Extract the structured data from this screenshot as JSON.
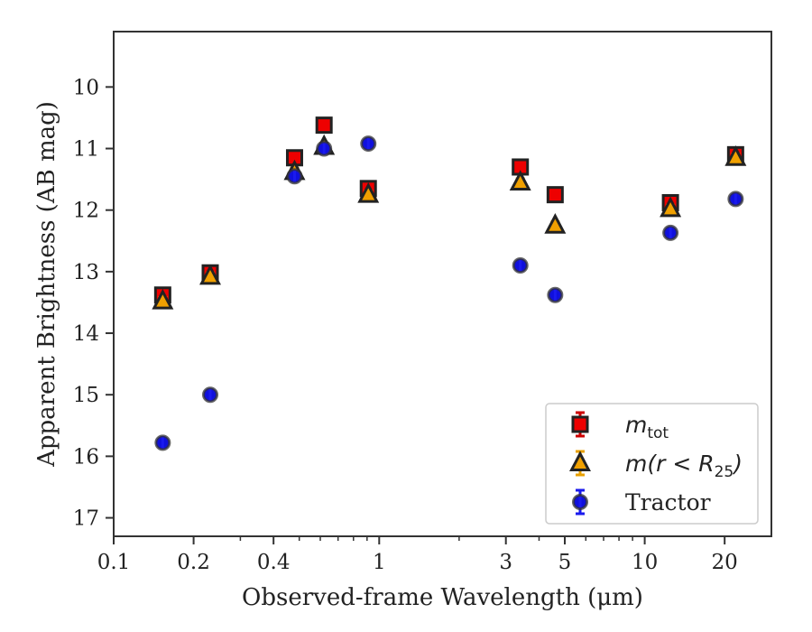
{
  "chart_data": {
    "type": "scatter",
    "xlabel": "Observed-frame Wavelength (μm)",
    "ylabel": "Apparent Brightness (AB mag)",
    "xscale": "log",
    "xlim": [
      0.1,
      30
    ],
    "ylim": [
      17.3,
      9.1
    ],
    "y_inverted": true,
    "x_ticks": [
      {
        "value": 0.1,
        "label": "0.1"
      },
      {
        "value": 0.2,
        "label": "0.2"
      },
      {
        "value": 0.4,
        "label": "0.4"
      },
      {
        "value": 1,
        "label": "1"
      },
      {
        "value": 3,
        "label": "3"
      },
      {
        "value": 5,
        "label": "5"
      },
      {
        "value": 10,
        "label": "10"
      },
      {
        "value": 20,
        "label": "20"
      }
    ],
    "y_ticks": [
      10,
      11,
      12,
      13,
      14,
      15,
      16,
      17
    ],
    "grid": false,
    "legend_position": "bottom-right",
    "series": [
      {
        "name": "m_tot",
        "legend_label": {
          "base": "m",
          "sub": "tot",
          "rest": ""
        },
        "marker": "square",
        "color": "#ee0000",
        "errcolor": "#cc0000",
        "points": [
          {
            "x": 0.153,
            "y": 13.38
          },
          {
            "x": 0.231,
            "y": 13.02
          },
          {
            "x": 0.48,
            "y": 11.15
          },
          {
            "x": 0.62,
            "y": 10.62
          },
          {
            "x": 0.91,
            "y": 11.65
          },
          {
            "x": 3.4,
            "y": 11.3
          },
          {
            "x": 4.6,
            "y": 11.75
          },
          {
            "x": 12.5,
            "y": 11.88
          },
          {
            "x": 22.0,
            "y": 11.1
          }
        ]
      },
      {
        "name": "m(r<R25)",
        "legend_label": {
          "base": "m(r < R",
          "sub": "25",
          "rest": ")"
        },
        "marker": "triangle",
        "color": "#f0a000",
        "errcolor": "#e8a000",
        "points": [
          {
            "x": 0.153,
            "y": 13.48
          },
          {
            "x": 0.231,
            "y": 13.08
          },
          {
            "x": 0.48,
            "y": 11.38
          },
          {
            "x": 0.62,
            "y": 10.97
          },
          {
            "x": 0.91,
            "y": 11.75
          },
          {
            "x": 3.4,
            "y": 11.55
          },
          {
            "x": 4.6,
            "y": 12.25
          },
          {
            "x": 12.5,
            "y": 11.98
          },
          {
            "x": 22.0,
            "y": 11.15
          }
        ]
      },
      {
        "name": "Tractor",
        "legend_label": {
          "base": "Tractor",
          "sub": "",
          "rest": ""
        },
        "marker": "circle",
        "color": "#1010dd",
        "errcolor": "#1a1aee",
        "points": [
          {
            "x": 0.153,
            "y": 15.78
          },
          {
            "x": 0.231,
            "y": 15.0
          },
          {
            "x": 0.48,
            "y": 11.45
          },
          {
            "x": 0.62,
            "y": 11.0
          },
          {
            "x": 0.91,
            "y": 10.92
          },
          {
            "x": 3.4,
            "y": 12.9
          },
          {
            "x": 4.6,
            "y": 13.38
          },
          {
            "x": 12.5,
            "y": 12.37
          },
          {
            "x": 22.0,
            "y": 11.82
          }
        ]
      }
    ]
  }
}
